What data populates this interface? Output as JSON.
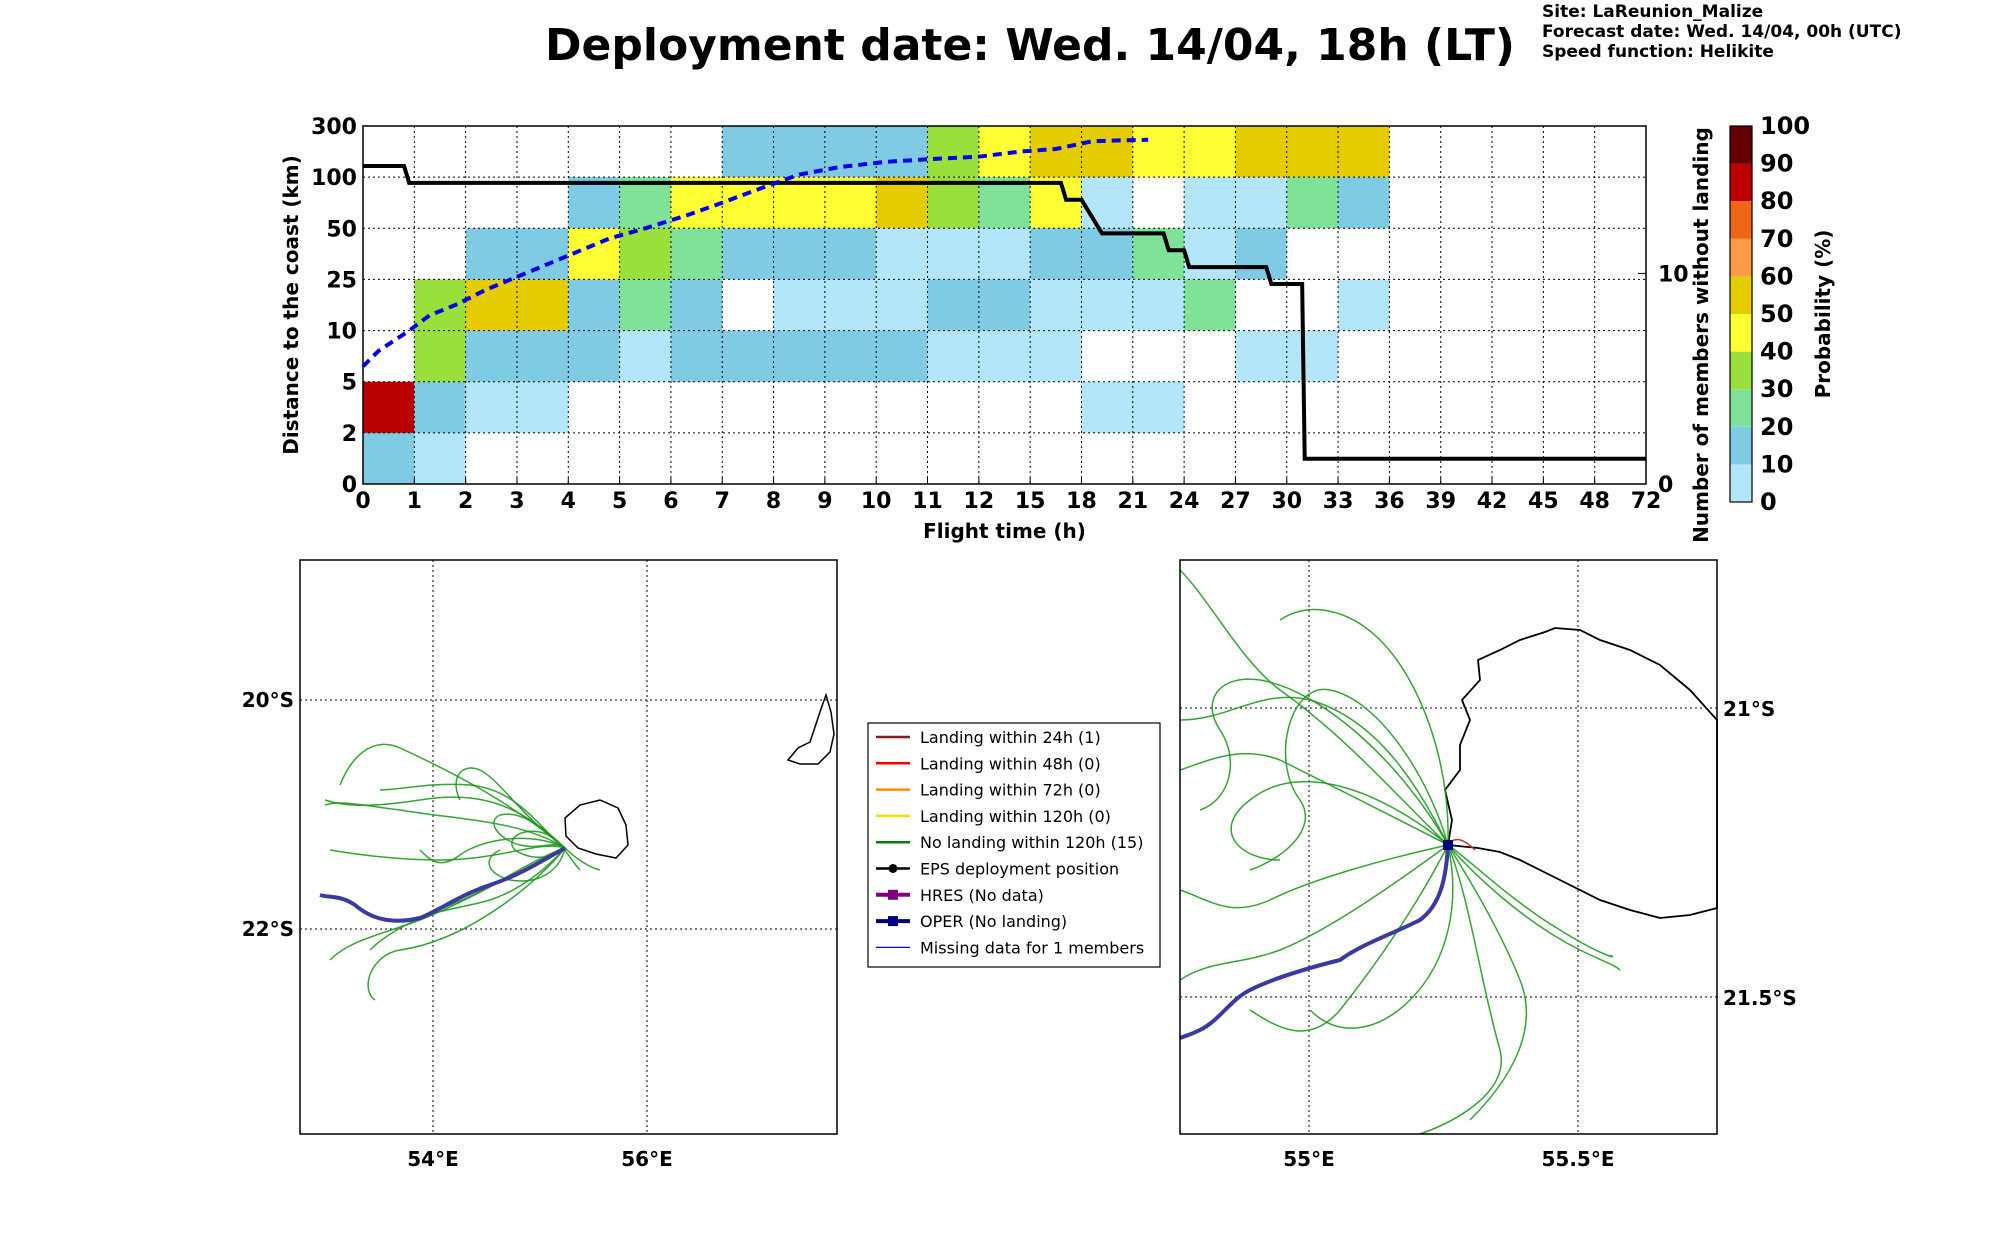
{
  "header": {
    "title": "Deployment date: Wed. 14/04, 18h (LT)",
    "site": "Site: LaReunion_Malize",
    "forecast": "Forecast date: Wed. 14/04, 00h (UTC)",
    "speed": "Speed function: Helikite"
  },
  "chart_data": [
    {
      "type": "heatmap",
      "xlabel": "Flight time (h)",
      "ylabel": "Distance to the coast (km)",
      "y2label": "Number of members without landing",
      "colorbar_label": "Probability (%)",
      "x_ticks": [
        "0",
        "1",
        "2",
        "3",
        "4",
        "5",
        "6",
        "7",
        "8",
        "9",
        "10",
        "11",
        "12",
        "15",
        "18",
        "21",
        "24",
        "27",
        "30",
        "33",
        "36",
        "39",
        "42",
        "45",
        "48",
        "72"
      ],
      "y_ticks": [
        "0",
        "2",
        "5",
        "10",
        "25",
        "50",
        "100",
        "300"
      ],
      "y2_ticks": [
        "0",
        "10"
      ],
      "y2_range": [
        0,
        17
      ],
      "colorbar_ticks": [
        "0",
        "10",
        "20",
        "30",
        "40",
        "50",
        "60",
        "70",
        "80",
        "90",
        "100"
      ],
      "colorbar_colors": [
        "#b3e6fa",
        "#80cbe4",
        "#80e299",
        "#99e03d",
        "#ffff33",
        "#e5cc00",
        "#ff9a47",
        "#ee6616",
        "#bb0000",
        "#660000"
      ],
      "grid": true,
      "cells": [
        {
          "x0": 0,
          "x1": 1,
          "y0": 0,
          "y1": 1,
          "p": 15
        },
        {
          "x0": 0,
          "x1": 1,
          "y0": 1,
          "y1": 2,
          "p": 85
        },
        {
          "x0": 1,
          "x1": 2,
          "y0": 0,
          "y1": 1,
          "p": 5
        },
        {
          "x0": 1,
          "x1": 2,
          "y0": 1,
          "y1": 2,
          "p": 15
        },
        {
          "x0": 1,
          "x1": 2,
          "y0": 2,
          "y1": 3,
          "p": 35
        },
        {
          "x0": 1,
          "x1": 2,
          "y0": 3,
          "y1": 4,
          "p": 35
        },
        {
          "x0": 2,
          "x1": 4,
          "y0": 1,
          "y1": 2,
          "p": 5
        },
        {
          "x0": 2,
          "x1": 5,
          "y0": 2,
          "y1": 3,
          "p": 15
        },
        {
          "x0": 2,
          "x1": 4,
          "y0": 3,
          "y1": 4,
          "p": 55
        },
        {
          "x0": 2,
          "x1": 4,
          "y0": 4,
          "y1": 5,
          "p": 15
        },
        {
          "x0": 4,
          "x1": 5,
          "y0": 3,
          "y1": 4,
          "p": 15
        },
        {
          "x0": 4,
          "x1": 5,
          "y0": 4,
          "y1": 5,
          "p": 45
        },
        {
          "x0": 4,
          "x1": 5,
          "y0": 5,
          "y1": 6,
          "p": 15
        },
        {
          "x0": 5,
          "x1": 6,
          "y0": 2,
          "y1": 3,
          "p": 5
        },
        {
          "x0": 5,
          "x1": 6,
          "y0": 3,
          "y1": 4,
          "p": 25
        },
        {
          "x0": 5,
          "x1": 6,
          "y0": 4,
          "y1": 5,
          "p": 35
        },
        {
          "x0": 5,
          "x1": 6,
          "y0": 5,
          "y1": 6,
          "p": 25
        },
        {
          "x0": 6,
          "x1": 11,
          "y0": 2,
          "y1": 3,
          "p": 15
        },
        {
          "x0": 6,
          "x1": 7,
          "y0": 3,
          "y1": 4,
          "p": 15
        },
        {
          "x0": 6,
          "x1": 7,
          "y0": 4,
          "y1": 5,
          "p": 25
        },
        {
          "x0": 6,
          "x1": 10,
          "y0": 5,
          "y1": 6,
          "p": 45
        },
        {
          "x0": 7,
          "x1": 10,
          "y0": 4,
          "y1": 5,
          "p": 15
        },
        {
          "x0": 7,
          "x1": 11,
          "y0": 6,
          "y1": 7,
          "p": 15
        },
        {
          "x0": 8,
          "x1": 11,
          "y0": 3,
          "y1": 4,
          "p": 5
        },
        {
          "x0": 10,
          "x1": 13,
          "y0": 4,
          "y1": 5,
          "p": 5
        },
        {
          "x0": 10,
          "x1": 11,
          "y0": 5,
          "y1": 6,
          "p": 55
        },
        {
          "x0": 11,
          "x1": 12,
          "y0": 5,
          "y1": 6,
          "p": 35
        },
        {
          "x0": 11,
          "x1": 12,
          "y0": 6,
          "y1": 7,
          "p": 35
        },
        {
          "x0": 11,
          "x1": 13,
          "y0": 3,
          "y1": 4,
          "p": 15
        },
        {
          "x0": 11,
          "x1": 14,
          "y0": 2,
          "y1": 3,
          "p": 5
        },
        {
          "x0": 12,
          "x1": 13,
          "y0": 5,
          "y1": 6,
          "p": 25
        },
        {
          "x0": 12,
          "x1": 13,
          "y0": 6,
          "y1": 7,
          "p": 45
        },
        {
          "x0": 13,
          "x1": 14,
          "y0": 5,
          "y1": 6,
          "p": 45
        },
        {
          "x0": 13,
          "x1": 15,
          "y0": 6,
          "y1": 7,
          "p": 55
        },
        {
          "x0": 13,
          "x1": 16,
          "y0": 3,
          "y1": 4,
          "p": 5
        },
        {
          "x0": 13,
          "x1": 15,
          "y0": 4,
          "y1": 5,
          "p": 15
        },
        {
          "x0": 14,
          "x1": 15,
          "y0": 5,
          "y1": 6,
          "p": 5
        },
        {
          "x0": 14,
          "x1": 16,
          "y0": 1,
          "y1": 2,
          "p": 5
        },
        {
          "x0": 15,
          "x1": 16,
          "y0": 4,
          "y1": 5,
          "p": 25
        },
        {
          "x0": 15,
          "x1": 16,
          "y0": 6,
          "y1": 7,
          "p": 45
        },
        {
          "x0": 16,
          "x1": 17,
          "y0": 3,
          "y1": 4,
          "p": 25
        },
        {
          "x0": 16,
          "x1": 17,
          "y0": 4,
          "y1": 5,
          "p": 5
        },
        {
          "x0": 16,
          "x1": 18,
          "y0": 5,
          "y1": 6,
          "p": 5
        },
        {
          "x0": 16,
          "x1": 17,
          "y0": 6,
          "y1": 7,
          "p": 45
        },
        {
          "x0": 17,
          "x1": 19,
          "y0": 2,
          "y1": 3,
          "p": 5
        },
        {
          "x0": 17,
          "x1": 18,
          "y0": 4,
          "y1": 5,
          "p": 15
        },
        {
          "x0": 17,
          "x1": 20,
          "y0": 6,
          "y1": 7,
          "p": 55
        },
        {
          "x0": 18,
          "x1": 19,
          "y0": 5,
          "y1": 6,
          "p": 25
        },
        {
          "x0": 19,
          "x1": 20,
          "y0": 3,
          "y1": 4,
          "p": 5
        },
        {
          "x0": 19,
          "x1": 20,
          "y0": 5,
          "y1": 6,
          "p": 15
        }
      ],
      "number_without_landing": {
        "x": [
          0,
          0.8,
          0.9,
          1.0,
          13.6,
          13.7,
          14.0,
          14.2,
          14.4,
          15.6,
          15.7,
          16.0,
          16.1,
          17.6,
          17.7,
          18.3,
          18.35
        ],
        "y": [
          15.1,
          15.1,
          14.3,
          14.3,
          14.3,
          13.5,
          13.5,
          12.7,
          11.9,
          11.9,
          11.1,
          11.1,
          10.3,
          10.3,
          9.5,
          9.5,
          1.2
        ],
        "x_end": 25
      },
      "median_distance": {
        "x": [
          0,
          0.3,
          0.6,
          0.9,
          1.3,
          1.8,
          2.4,
          3.0,
          3.6,
          4.2,
          4.8,
          5.5,
          6.3,
          7.0,
          7.8,
          8.5,
          9.3,
          10.2,
          11.0,
          12.0,
          12.8,
          13.5,
          14.2,
          14.8,
          15.3
        ],
        "y": [
          2.3,
          2.6,
          2.8,
          3.0,
          3.3,
          3.5,
          3.8,
          4.05,
          4.3,
          4.55,
          4.8,
          5.0,
          5.25,
          5.5,
          5.8,
          6.05,
          6.2,
          6.3,
          6.35,
          6.4,
          6.5,
          6.55,
          6.7,
          6.72,
          6.73
        ]
      }
    },
    {
      "type": "map",
      "lon_ticks": [
        "54°E",
        "56°E"
      ],
      "lat_ticks": [
        "20°S",
        "22°S"
      ]
    },
    {
      "type": "map",
      "lon_ticks": [
        "55°E",
        "55.5°E"
      ],
      "lat_ticks": [
        "21°S",
        "21.5°S"
      ]
    }
  ],
  "legend": [
    {
      "label": "Landing within 24h (1)",
      "color": "#8b1a1a",
      "kind": "line"
    },
    {
      "label": "Landing within 48h (0)",
      "color": "#ff0000",
      "kind": "line"
    },
    {
      "label": "Landing within 72h (0)",
      "color": "#ff8c00",
      "kind": "line"
    },
    {
      "label": "Landing within 120h (0)",
      "color": "#ffd700",
      "kind": "line"
    },
    {
      "label": "No landing within 120h (15)",
      "color": "#008000",
      "kind": "line"
    },
    {
      "label": "EPS deployment position",
      "color": "#000000",
      "kind": "dot"
    },
    {
      "label": "HRES (No data)",
      "color": "#800080",
      "kind": "square"
    },
    {
      "label": "OPER (No landing)",
      "color": "#000080",
      "kind": "square"
    },
    {
      "label": "Missing data for 1 members",
      "color": "#0000ff",
      "kind": "thin"
    }
  ]
}
